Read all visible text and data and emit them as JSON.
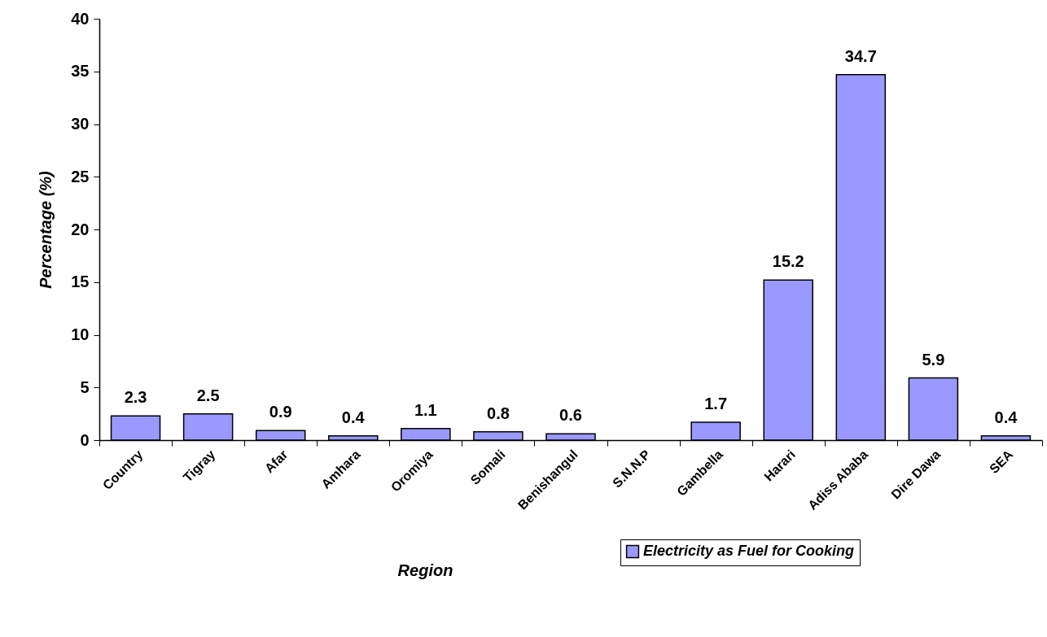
{
  "chart_data": {
    "type": "bar",
    "xlabel": "Region",
    "ylabel": "Percentage (%)",
    "categories": [
      "Country",
      "Tigray",
      "Afar",
      "Amhara",
      "Oromiya",
      "Somali",
      "Benishangul",
      "S.N.N.P",
      "Gambella",
      "Harari",
      "Adiss Ababa",
      "Dire Dawa",
      "SEA"
    ],
    "series": [
      {
        "name": "Electricity as Fuel for Cooking",
        "color": "#9999ff",
        "values": [
          2.3,
          2.5,
          0.9,
          0.4,
          1.1,
          0.8,
          0.6,
          null,
          1.7,
          15.2,
          34.7,
          5.9,
          0.4
        ]
      }
    ],
    "ylim": [
      0,
      40
    ],
    "yticks": [
      0,
      5,
      10,
      15,
      20,
      25,
      30,
      35,
      40
    ],
    "data_labels": true,
    "legend": "bottom right",
    "grid": false
  }
}
